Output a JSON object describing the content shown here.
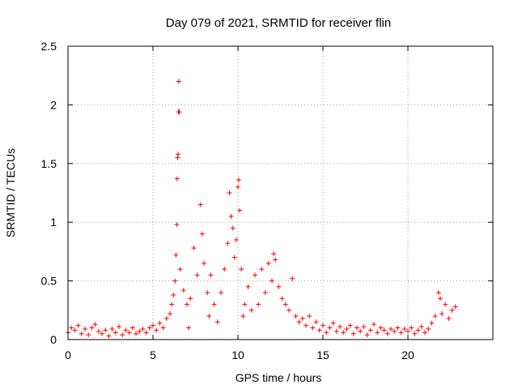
{
  "chart_data": {
    "type": "scatter",
    "title": "Day 079 of 2021, SRMTID for receiver flin",
    "xlabel": "GPS time / hours",
    "ylabel": "SRMTID / TECUs",
    "xlim": [
      0,
      25
    ],
    "ylim": [
      0,
      2.5
    ],
    "xticks": [
      0,
      5,
      10,
      15,
      20
    ],
    "yticks": [
      0,
      0.5,
      1,
      1.5,
      2,
      2.5
    ],
    "xtick_labels": [
      "0",
      "5",
      "10",
      "15",
      "20"
    ],
    "ytick_labels": [
      "0",
      "0.5",
      "1",
      "1.5",
      "2",
      "2.5"
    ],
    "grid": true,
    "marker": "+",
    "series": [
      {
        "name": "SRMTID",
        "color": "#ff0000",
        "points": [
          [
            0.0,
            0.06
          ],
          [
            0.2,
            0.1
          ],
          [
            0.4,
            0.08
          ],
          [
            0.6,
            0.12
          ],
          [
            0.8,
            0.05
          ],
          [
            1.0,
            0.09
          ],
          [
            1.2,
            0.04
          ],
          [
            1.4,
            0.1
          ],
          [
            1.6,
            0.13
          ],
          [
            1.8,
            0.07
          ],
          [
            2.0,
            0.05
          ],
          [
            2.2,
            0.08
          ],
          [
            2.4,
            0.03
          ],
          [
            2.6,
            0.09
          ],
          [
            2.8,
            0.06
          ],
          [
            3.0,
            0.11
          ],
          [
            3.2,
            0.04
          ],
          [
            3.4,
            0.08
          ],
          [
            3.6,
            0.06
          ],
          [
            3.8,
            0.1
          ],
          [
            4.0,
            0.05
          ],
          [
            4.2,
            0.07
          ],
          [
            4.4,
            0.09
          ],
          [
            4.6,
            0.06
          ],
          [
            4.8,
            0.1
          ],
          [
            5.0,
            0.12
          ],
          [
            5.2,
            0.08
          ],
          [
            5.4,
            0.14
          ],
          [
            5.6,
            0.1
          ],
          [
            5.8,
            0.18
          ],
          [
            6.0,
            0.22
          ],
          [
            6.1,
            0.3
          ],
          [
            6.2,
            0.38
          ],
          [
            6.3,
            0.5
          ],
          [
            6.35,
            0.72
          ],
          [
            6.4,
            0.98
          ],
          [
            6.42,
            1.37
          ],
          [
            6.45,
            1.55
          ],
          [
            6.48,
            1.58
          ],
          [
            6.5,
            1.94
          ],
          [
            6.52,
            2.2
          ],
          [
            6.55,
            1.94
          ],
          [
            6.6,
            0.6
          ],
          [
            6.8,
            0.42
          ],
          [
            7.0,
            0.3
          ],
          [
            7.1,
            0.1
          ],
          [
            7.2,
            0.35
          ],
          [
            7.4,
            0.78
          ],
          [
            7.6,
            0.55
          ],
          [
            7.8,
            1.15
          ],
          [
            7.9,
            0.9
          ],
          [
            8.0,
            0.65
          ],
          [
            8.2,
            0.4
          ],
          [
            8.3,
            0.2
          ],
          [
            8.4,
            0.55
          ],
          [
            8.6,
            0.3
          ],
          [
            8.8,
            0.15
          ],
          [
            9.0,
            0.4
          ],
          [
            9.2,
            0.6
          ],
          [
            9.4,
            0.82
          ],
          [
            9.5,
            1.25
          ],
          [
            9.6,
            1.05
          ],
          [
            9.7,
            0.95
          ],
          [
            9.8,
            0.7
          ],
          [
            9.9,
            0.85
          ],
          [
            10.0,
            1.3
          ],
          [
            10.05,
            1.36
          ],
          [
            10.1,
            1.1
          ],
          [
            10.2,
            0.6
          ],
          [
            10.3,
            0.2
          ],
          [
            10.4,
            0.3
          ],
          [
            10.6,
            0.45
          ],
          [
            10.8,
            0.25
          ],
          [
            11.0,
            0.55
          ],
          [
            11.2,
            0.3
          ],
          [
            11.4,
            0.6
          ],
          [
            11.6,
            0.4
          ],
          [
            11.8,
            0.65
          ],
          [
            12.0,
            0.5
          ],
          [
            12.1,
            0.73
          ],
          [
            12.2,
            0.68
          ],
          [
            12.4,
            0.45
          ],
          [
            12.6,
            0.35
          ],
          [
            12.8,
            0.3
          ],
          [
            13.0,
            0.25
          ],
          [
            13.2,
            0.52
          ],
          [
            13.4,
            0.2
          ],
          [
            13.6,
            0.15
          ],
          [
            13.8,
            0.18
          ],
          [
            14.0,
            0.12
          ],
          [
            14.2,
            0.2
          ],
          [
            14.4,
            0.1
          ],
          [
            14.6,
            0.15
          ],
          [
            14.8,
            0.08
          ],
          [
            15.0,
            0.12
          ],
          [
            15.2,
            0.06
          ],
          [
            15.4,
            0.1
          ],
          [
            15.6,
            0.14
          ],
          [
            15.8,
            0.07
          ],
          [
            16.0,
            0.11
          ],
          [
            16.2,
            0.06
          ],
          [
            16.4,
            0.09
          ],
          [
            16.6,
            0.12
          ],
          [
            16.8,
            0.05
          ],
          [
            17.0,
            0.1
          ],
          [
            17.2,
            0.07
          ],
          [
            17.4,
            0.11
          ],
          [
            17.6,
            0.04
          ],
          [
            17.8,
            0.08
          ],
          [
            18.0,
            0.13
          ],
          [
            18.2,
            0.06
          ],
          [
            18.4,
            0.1
          ],
          [
            18.6,
            0.08
          ],
          [
            18.8,
            0.05
          ],
          [
            19.0,
            0.09
          ],
          [
            19.2,
            0.07
          ],
          [
            19.4,
            0.1
          ],
          [
            19.6,
            0.06
          ],
          [
            19.8,
            0.09
          ],
          [
            20.0,
            0.07
          ],
          [
            20.2,
            0.1
          ],
          [
            20.4,
            0.05
          ],
          [
            20.6,
            0.08
          ],
          [
            20.8,
            0.11
          ],
          [
            21.0,
            0.06
          ],
          [
            21.2,
            0.09
          ],
          [
            21.4,
            0.14
          ],
          [
            21.6,
            0.2
          ],
          [
            21.8,
            0.4
          ],
          [
            21.9,
            0.35
          ],
          [
            22.0,
            0.22
          ],
          [
            22.2,
            0.3
          ],
          [
            22.4,
            0.18
          ],
          [
            22.6,
            0.25
          ],
          [
            22.8,
            0.28
          ]
        ]
      }
    ]
  }
}
